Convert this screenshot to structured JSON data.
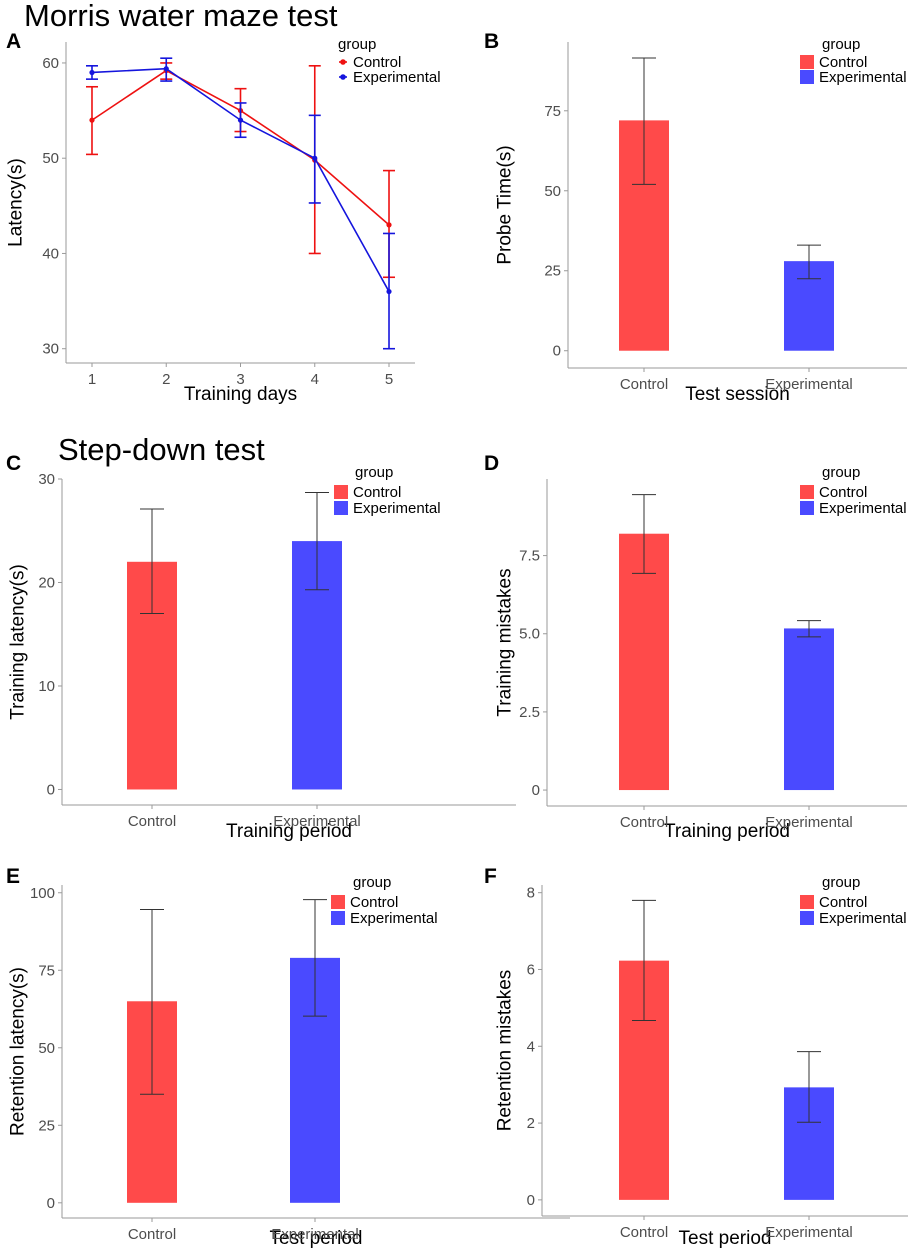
{
  "section_titles": {
    "morris": "Morris water maze test",
    "stepdown": "Step-down test"
  },
  "colors": {
    "control": "#ff4a4a",
    "experimental": "#4a4aff",
    "line_control": "#ee1111",
    "line_experimental": "#1515dd"
  },
  "chart_data": [
    {
      "panel": "A",
      "type": "line",
      "title": "",
      "xlabel": "Training days",
      "ylabel": "Latency(s)",
      "x": [
        1,
        2,
        3,
        4,
        5
      ],
      "xlim": [
        0.65,
        5.35
      ],
      "ylim": [
        28.5,
        62.2
      ],
      "yticks": [
        30,
        40,
        50,
        60
      ],
      "xticks": [
        1,
        2,
        3,
        4,
        5
      ],
      "legend_title": "group",
      "legend_position": "top-right",
      "series": [
        {
          "name": "Control",
          "values": [
            54.0,
            59.2,
            55.0,
            49.8,
            43.0
          ],
          "err_low": [
            50.4,
            58.3,
            52.8,
            40.0,
            37.5
          ],
          "err_high": [
            57.5,
            60.0,
            57.3,
            59.7,
            48.7
          ]
        },
        {
          "name": "Experimental",
          "values": [
            59.0,
            59.4,
            54.0,
            50.0,
            36.0
          ],
          "err_low": [
            58.3,
            58.1,
            52.2,
            45.3,
            30.0
          ],
          "err_high": [
            59.7,
            60.5,
            55.8,
            54.5,
            42.1
          ]
        }
      ]
    },
    {
      "panel": "B",
      "type": "bar",
      "title": "",
      "xlabel": "Test session",
      "ylabel": "Probe Time(s)",
      "categories": [
        "Control",
        "Experimental"
      ],
      "values": [
        72.0,
        28.0
      ],
      "err_low": [
        52.0,
        22.5
      ],
      "err_high": [
        91.5,
        33.0
      ],
      "ylim": [
        -5.4,
        96.5
      ],
      "yticks": [
        0,
        25,
        50,
        75
      ],
      "ytick_labels": [
        "0",
        "25",
        "50",
        "75"
      ],
      "legend_title": "group",
      "legend_entries": [
        "Control",
        "Experimental"
      ],
      "legend_position": "top-right"
    },
    {
      "panel": "C",
      "type": "bar",
      "title": "",
      "xlabel": "Training period",
      "ylabel": "Training latency(s)",
      "categories": [
        "Control",
        "Experimental"
      ],
      "values": [
        22.0,
        24.0
      ],
      "err_low": [
        17.0,
        19.3
      ],
      "err_high": [
        27.1,
        28.7
      ],
      "ylim": [
        -1.5,
        30.0
      ],
      "yticks": [
        0,
        10,
        20,
        30
      ],
      "ytick_labels": [
        "0",
        "10",
        "20",
        "30"
      ],
      "legend_title": "group",
      "legend_entries": [
        "Control",
        "Experimental"
      ],
      "legend_position": "top-right"
    },
    {
      "panel": "D",
      "type": "bar",
      "title": "",
      "xlabel": "Training period",
      "ylabel": "Training mistakes",
      "categories": [
        "Control",
        "Experimental"
      ],
      "values": [
        8.2,
        5.17
      ],
      "err_low": [
        6.93,
        4.9
      ],
      "err_high": [
        9.45,
        5.42
      ],
      "ylim": [
        -0.51,
        9.95
      ],
      "yticks": [
        0,
        2.5,
        5.0,
        7.5
      ],
      "ytick_labels": [
        "0",
        "2.5",
        "5.0",
        "7.5"
      ],
      "legend_title": "group",
      "legend_entries": [
        "Control",
        "Experimental"
      ],
      "legend_position": "top-right"
    },
    {
      "panel": "E",
      "type": "bar",
      "title": "",
      "xlabel": "Test period",
      "ylabel": "Retention latency(s)",
      "categories": [
        "Control",
        "Experimental"
      ],
      "values": [
        65.0,
        79.0
      ],
      "err_low": [
        35.0,
        60.2
      ],
      "err_high": [
        94.6,
        97.8
      ],
      "ylim": [
        -4.9,
        102.5
      ],
      "yticks": [
        0,
        25,
        50,
        75,
        100
      ],
      "ytick_labels": [
        "0",
        "25",
        "50",
        "75",
        "100"
      ],
      "legend_title": "group",
      "legend_entries": [
        "Control",
        "Experimental"
      ],
      "legend_position": "top-right"
    },
    {
      "panel": "F",
      "type": "bar",
      "title": "",
      "xlabel": "Test period",
      "ylabel": "Retention mistakes",
      "categories": [
        "Control",
        "Experimental"
      ],
      "values": [
        6.23,
        2.93
      ],
      "err_low": [
        4.67,
        2.02
      ],
      "err_high": [
        7.8,
        3.86
      ],
      "ylim": [
        -0.42,
        8.2
      ],
      "yticks": [
        0,
        2,
        4,
        6,
        8
      ],
      "ytick_labels": [
        "0",
        "2",
        "4",
        "6",
        "8"
      ],
      "legend_title": "group",
      "legend_entries": [
        "Control",
        "Experimental"
      ],
      "legend_position": "top-right"
    }
  ]
}
